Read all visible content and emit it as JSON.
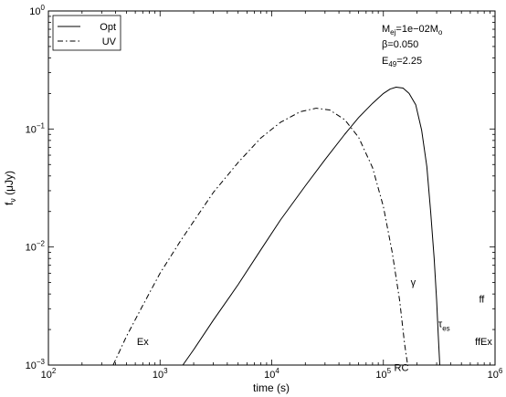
{
  "chart_data": {
    "type": "line",
    "xlabel": "time (s)",
    "ylabel_main": "f",
    "ylabel_sub": "ν",
    "ylabel_unit": " (μJy)",
    "xscale": "log",
    "yscale": "log",
    "xlim": [
      100,
      1000000
    ],
    "ylim": [
      0.001,
      1
    ],
    "x_ticks": [
      {
        "value": 100,
        "base": "10",
        "exp": "2"
      },
      {
        "value": 1000,
        "base": "10",
        "exp": "3"
      },
      {
        "value": 10000,
        "base": "10",
        "exp": "4"
      },
      {
        "value": 100000,
        "base": "10",
        "exp": "5"
      },
      {
        "value": 1000000,
        "base": "10",
        "exp": "6"
      }
    ],
    "y_ticks": [
      {
        "value": 0.001,
        "base": "10",
        "exp": "−3"
      },
      {
        "value": 0.01,
        "base": "10",
        "exp": "−2"
      },
      {
        "value": 0.1,
        "base": "10",
        "exp": "−1"
      },
      {
        "value": 1,
        "base": "10",
        "exp": "0"
      }
    ],
    "grid": false,
    "legend_position": "top-left",
    "series": [
      {
        "name": "Opt",
        "style": "solid",
        "color": "#000000",
        "points": [
          [
            1600,
            0.001
          ],
          [
            2000,
            0.00135
          ],
          [
            3000,
            0.0024
          ],
          [
            5000,
            0.0048
          ],
          [
            8000,
            0.0095
          ],
          [
            12000,
            0.017
          ],
          [
            20000,
            0.033
          ],
          [
            30000,
            0.055
          ],
          [
            45000,
            0.09
          ],
          [
            60000,
            0.125
          ],
          [
            80000,
            0.165
          ],
          [
            100000,
            0.2
          ],
          [
            115000,
            0.218
          ],
          [
            130000,
            0.226
          ],
          [
            150000,
            0.222
          ],
          [
            170000,
            0.2
          ],
          [
            195000,
            0.16
          ],
          [
            220000,
            0.098
          ],
          [
            245000,
            0.048
          ],
          [
            265000,
            0.02
          ],
          [
            285000,
            0.008
          ],
          [
            300000,
            0.0035
          ],
          [
            310000,
            0.0018
          ],
          [
            320000,
            0.001
          ]
        ]
      },
      {
        "name": "UV",
        "style": "dashdot",
        "color": "#000000",
        "points": [
          [
            380,
            0.001
          ],
          [
            500,
            0.00175
          ],
          [
            700,
            0.0032
          ],
          [
            1000,
            0.006
          ],
          [
            1500,
            0.011
          ],
          [
            2000,
            0.0165
          ],
          [
            3000,
            0.029
          ],
          [
            5000,
            0.052
          ],
          [
            8000,
            0.084
          ],
          [
            12000,
            0.114
          ],
          [
            18000,
            0.14
          ],
          [
            25000,
            0.15
          ],
          [
            33000,
            0.145
          ],
          [
            45000,
            0.12
          ],
          [
            60000,
            0.085
          ],
          [
            80000,
            0.047
          ],
          [
            100000,
            0.022
          ],
          [
            120000,
            0.009
          ],
          [
            140000,
            0.0035
          ],
          [
            155000,
            0.0015
          ],
          [
            165000,
            0.001
          ]
        ]
      }
    ],
    "annotations_params": [
      {
        "main": "M",
        "sub": "ej",
        "rest": "=1e−02M",
        "sub2": "o"
      },
      {
        "main": "β=0.050",
        "sub": "",
        "rest": "",
        "sub2": ""
      },
      {
        "main": "E",
        "sub": "49",
        "rest": "=2.25",
        "sub2": ""
      }
    ],
    "marker_labels": [
      {
        "key": "ex",
        "text": "Ex",
        "x": 700,
        "y": 0.00148
      },
      {
        "key": "gamma",
        "text": "γ",
        "x": 185000,
        "y": 0.0047
      },
      {
        "key": "rc",
        "text": "RC",
        "x": 145000,
        "y": 0.00089
      },
      {
        "key": "ff",
        "text": "ff",
        "x": 760000,
        "y": 0.0034
      },
      {
        "key": "ffex",
        "text": "ffEx",
        "x": 790000,
        "y": 0.00148
      }
    ],
    "tau_label": {
      "main": "τ",
      "sub": "es",
      "x": 350000,
      "y": 0.0021
    }
  }
}
